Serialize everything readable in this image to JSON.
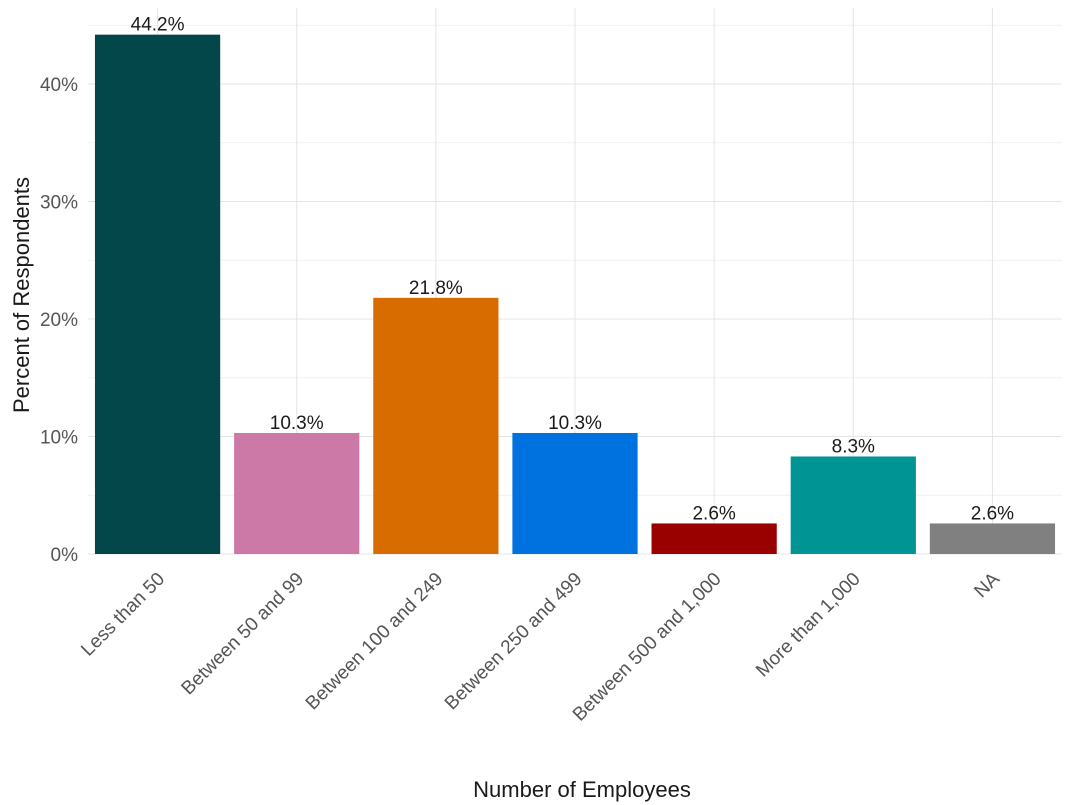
{
  "chart_data": {
    "type": "bar",
    "xlabel": "Number of Employees",
    "ylabel": "Percent of Respondents",
    "ylim": [
      0,
      45
    ],
    "y_ticks": [
      0,
      10,
      20,
      30,
      40
    ],
    "y_tick_labels": [
      "0%",
      "10%",
      "20%",
      "30%",
      "40%"
    ],
    "grid": true,
    "legend": "none",
    "categories": [
      "Less than 50",
      "Between 50 and 99",
      "Between 100 and 249",
      "Between 250 and 499",
      "Between 500 and 1,000",
      "More than 1,000",
      "NA"
    ],
    "values": [
      44.2,
      10.3,
      21.8,
      10.3,
      2.6,
      8.3,
      2.6
    ],
    "value_labels": [
      "44.2%",
      "10.3%",
      "21.8%",
      "10.3%",
      "2.6%",
      "8.3%",
      "2.6%"
    ],
    "colors": [
      "#03474a",
      "#cc79a7",
      "#d96c00",
      "#0072e0",
      "#990000",
      "#009494",
      "#808080"
    ]
  }
}
